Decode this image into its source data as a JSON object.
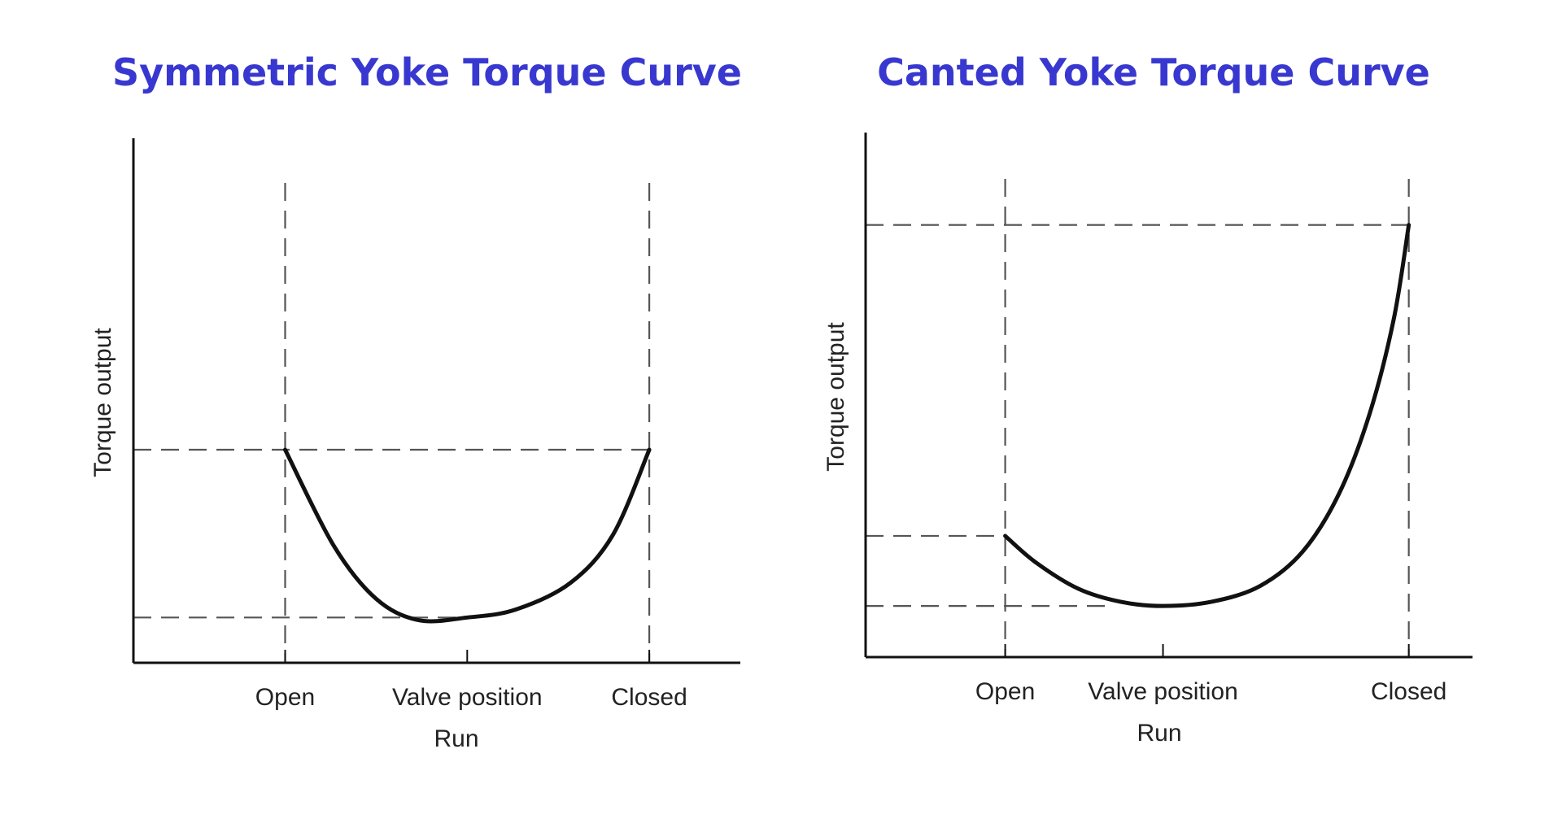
{
  "colors": {
    "title": "#3838d0",
    "ink": "#111111",
    "guide": "#555555"
  },
  "chart_data": [
    {
      "type": "line",
      "title": "Symmetric Yoke Torque Curve",
      "xlabel": "Run",
      "ylabel": "Torque output",
      "x_ticks": [
        {
          "label": "Open",
          "x": 0.25
        },
        {
          "label": "Valve position",
          "x": 0.55
        },
        {
          "label": "Closed",
          "x": 0.85
        }
      ],
      "xlim": [
        0,
        1
      ],
      "ylim": [
        0,
        1
      ],
      "grid": false,
      "series": [
        {
          "points": [
            [
              0.25,
              0.4
            ],
            [
              0.33,
              0.22
            ],
            [
              0.4,
              0.12
            ],
            [
              0.47,
              0.08
            ],
            [
              0.55,
              0.085
            ],
            [
              0.63,
              0.1
            ],
            [
              0.72,
              0.15
            ],
            [
              0.79,
              0.24
            ],
            [
              0.85,
              0.4
            ]
          ]
        }
      ],
      "reference_lines": [
        {
          "orientation": "vertical",
          "x": 0.25
        },
        {
          "orientation": "vertical",
          "x": 0.85
        },
        {
          "orientation": "horizontal",
          "y": 0.4,
          "x_end": 0.85
        },
        {
          "orientation": "horizontal",
          "y": 0.085,
          "x_end": 0.55
        }
      ]
    },
    {
      "type": "line",
      "title": "Canted Yoke Torque Curve",
      "xlabel": "Run",
      "ylabel": "Torque output",
      "x_ticks": [
        {
          "label": "Open",
          "x": 0.23
        },
        {
          "label": "Valve position",
          "x": 0.49
        },
        {
          "label": "Closed",
          "x": 0.895
        }
      ],
      "xlim": [
        0,
        1
      ],
      "ylim": [
        0,
        1
      ],
      "grid": false,
      "series": [
        {
          "points": [
            [
              0.23,
              0.23
            ],
            [
              0.28,
              0.18
            ],
            [
              0.35,
              0.13
            ],
            [
              0.42,
              0.105
            ],
            [
              0.49,
              0.097
            ],
            [
              0.57,
              0.105
            ],
            [
              0.65,
              0.135
            ],
            [
              0.72,
              0.2
            ],
            [
              0.78,
              0.31
            ],
            [
              0.83,
              0.46
            ],
            [
              0.87,
              0.64
            ],
            [
              0.895,
              0.82
            ]
          ]
        }
      ],
      "reference_lines": [
        {
          "orientation": "vertical",
          "x": 0.23
        },
        {
          "orientation": "vertical",
          "x": 0.895
        },
        {
          "orientation": "horizontal",
          "y": 0.82,
          "x_end": 0.895
        },
        {
          "orientation": "horizontal",
          "y": 0.23,
          "x_end": 0.23
        },
        {
          "orientation": "horizontal",
          "y": 0.097,
          "x_end": 0.4
        }
      ]
    }
  ]
}
